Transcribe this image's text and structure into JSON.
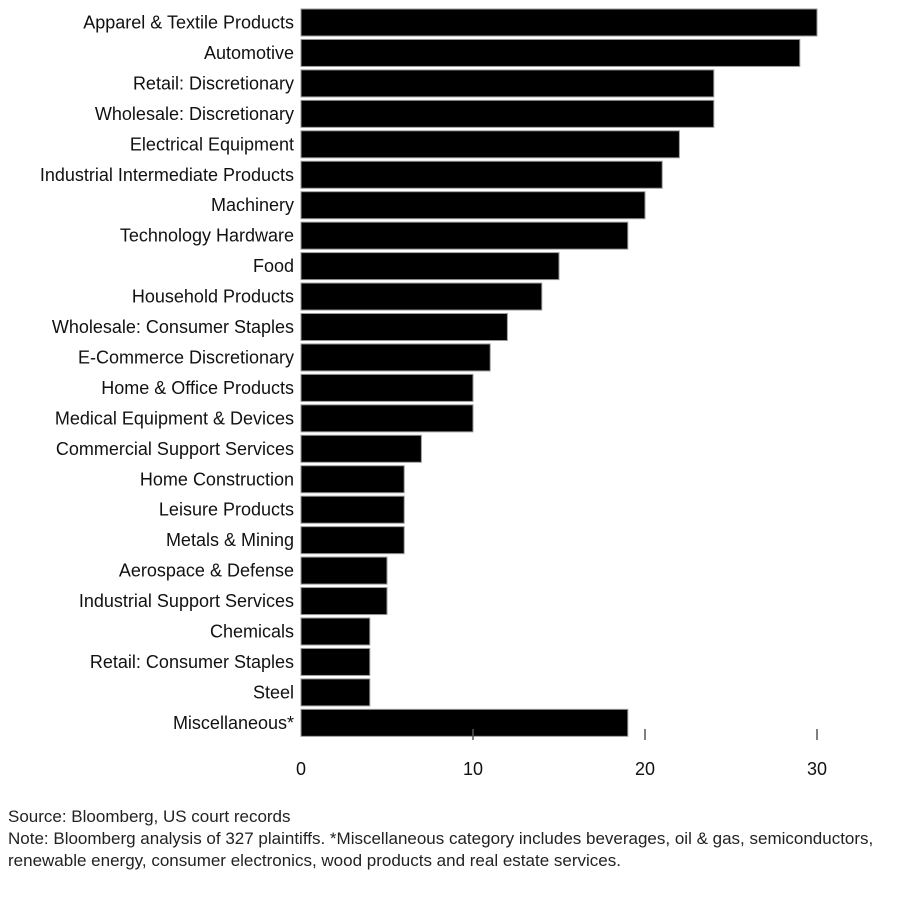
{
  "chart_data": {
    "type": "bar",
    "orientation": "horizontal",
    "title": "",
    "xlabel": "",
    "ylabel": "",
    "categories": [
      "Apparel & Textile Products",
      "Automotive",
      "Retail: Discretionary",
      "Wholesale: Discretionary",
      "Electrical Equipment",
      "Industrial Intermediate Products",
      "Machinery",
      "Technology Hardware",
      "Food",
      "Household Products",
      "Wholesale: Consumer Staples",
      "E-Commerce Discretionary",
      "Home & Office Products",
      "Medical Equipment & Devices",
      "Commercial Support Services",
      "Home Construction",
      "Leisure Products",
      "Metals & Mining",
      "Aerospace & Defense",
      "Industrial Support Services",
      "Chemicals",
      "Retail: Consumer Staples",
      "Steel",
      "Miscellaneous*"
    ],
    "values": [
      30,
      29,
      24,
      24,
      22,
      21,
      20,
      19,
      15,
      14,
      12,
      11,
      10,
      10,
      7,
      6,
      6,
      6,
      5,
      5,
      4,
      4,
      4,
      19
    ],
    "xlim": [
      0,
      30
    ],
    "xticks": [
      0,
      10,
      20,
      30
    ],
    "xtick_labels": [
      "0",
      "10",
      "20",
      "30"
    ],
    "grid": false,
    "legend": "none",
    "bar_color": "#000000"
  },
  "footer": {
    "source": "Source: Bloomberg, US court records",
    "note": "Note: Bloomberg analysis of 327 plaintiffs. *Miscellaneous category includes beverages, oil & gas, semiconductors, renewable energy, consumer electronics, wood products and real estate services."
  }
}
